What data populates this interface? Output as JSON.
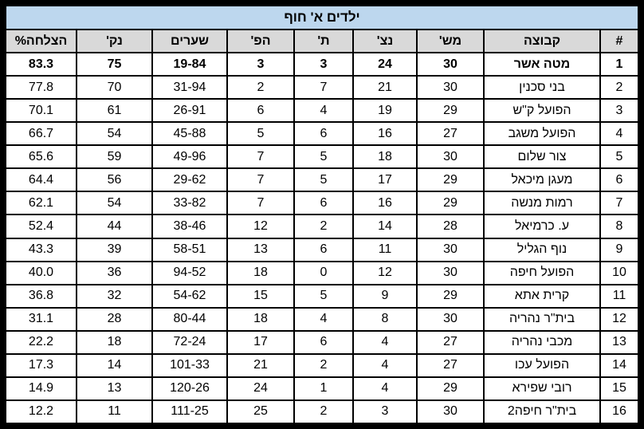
{
  "title": "ילדים א' חוף",
  "colors": {
    "title_background": "#BDD7EE",
    "header_background": "#D9D9D9",
    "grid_border": "#000000",
    "cell_background": "#FFFFFF",
    "text": "#000000"
  },
  "columns": [
    {
      "key": "rank",
      "label": "#"
    },
    {
      "key": "team",
      "label": "קבוצה"
    },
    {
      "key": "games",
      "label": "מש'"
    },
    {
      "key": "wins",
      "label": "נצ'"
    },
    {
      "key": "draws",
      "label": "ת'"
    },
    {
      "key": "losses",
      "label": "הפ'"
    },
    {
      "key": "goals",
      "label": "שערים"
    },
    {
      "key": "points",
      "label": "נק'"
    },
    {
      "key": "success",
      "label": "הצלחה%"
    }
  ],
  "rows": [
    {
      "rank": "1",
      "team": "מטה אשר",
      "games": "30",
      "wins": "24",
      "draws": "3",
      "losses": "3",
      "goals": "19-84",
      "points": "75",
      "success": "83.3",
      "bold": true
    },
    {
      "rank": "2",
      "team": "בני סכנין",
      "games": "30",
      "wins": "21",
      "draws": "7",
      "losses": "2",
      "goals": "31-94",
      "points": "70",
      "success": "77.8",
      "bold": false
    },
    {
      "rank": "3",
      "team": "הפועל ק\"ש",
      "games": "29",
      "wins": "19",
      "draws": "4",
      "losses": "6",
      "goals": "26-91",
      "points": "61",
      "success": "70.1",
      "bold": false
    },
    {
      "rank": "4",
      "team": "הפועל משגב",
      "games": "27",
      "wins": "16",
      "draws": "6",
      "losses": "5",
      "goals": "45-88",
      "points": "54",
      "success": "66.7",
      "bold": false
    },
    {
      "rank": "5",
      "team": "צור שלום",
      "games": "30",
      "wins": "18",
      "draws": "5",
      "losses": "7",
      "goals": "49-96",
      "points": "59",
      "success": "65.6",
      "bold": false
    },
    {
      "rank": "6",
      "team": "מעגן מיכאל",
      "games": "29",
      "wins": "17",
      "draws": "5",
      "losses": "7",
      "goals": "29-62",
      "points": "56",
      "success": "64.4",
      "bold": false
    },
    {
      "rank": "7",
      "team": "רמות מנשה",
      "games": "29",
      "wins": "16",
      "draws": "6",
      "losses": "7",
      "goals": "33-82",
      "points": "54",
      "success": "62.1",
      "bold": false
    },
    {
      "rank": "8",
      "team": "ע. כרמיאל",
      "games": "28",
      "wins": "14",
      "draws": "2",
      "losses": "12",
      "goals": "38-46",
      "points": "44",
      "success": "52.4",
      "bold": false
    },
    {
      "rank": "9",
      "team": "נוף הגליל",
      "games": "30",
      "wins": "11",
      "draws": "6",
      "losses": "13",
      "goals": "58-51",
      "points": "39",
      "success": "43.3",
      "bold": false
    },
    {
      "rank": "10",
      "team": "הפועל חיפה",
      "games": "30",
      "wins": "12",
      "draws": "0",
      "losses": "18",
      "goals": "94-52",
      "points": "36",
      "success": "40.0",
      "bold": false
    },
    {
      "rank": "11",
      "team": "קרית אתא",
      "games": "29",
      "wins": "9",
      "draws": "5",
      "losses": "15",
      "goals": "54-62",
      "points": "32",
      "success": "36.8",
      "bold": false
    },
    {
      "rank": "12",
      "team": "בית\"ר נהריה",
      "games": "30",
      "wins": "8",
      "draws": "4",
      "losses": "18",
      "goals": "80-44",
      "points": "28",
      "success": "31.1",
      "bold": false
    },
    {
      "rank": "13",
      "team": "מכבי נהריה",
      "games": "27",
      "wins": "4",
      "draws": "6",
      "losses": "17",
      "goals": "72-24",
      "points": "18",
      "success": "22.2",
      "bold": false
    },
    {
      "rank": "14",
      "team": "הפועל עכו",
      "games": "27",
      "wins": "4",
      "draws": "2",
      "losses": "21",
      "goals": "101-33",
      "points": "14",
      "success": "17.3",
      "bold": false
    },
    {
      "rank": "15",
      "team": "רובי שפירא",
      "games": "29",
      "wins": "4",
      "draws": "1",
      "losses": "24",
      "goals": "120-26",
      "points": "13",
      "success": "14.9",
      "bold": false
    },
    {
      "rank": "16",
      "team": "בית\"ר חיפה2",
      "games": "30",
      "wins": "3",
      "draws": "2",
      "losses": "25",
      "goals": "111-25",
      "points": "11",
      "success": "12.2",
      "bold": false
    }
  ]
}
